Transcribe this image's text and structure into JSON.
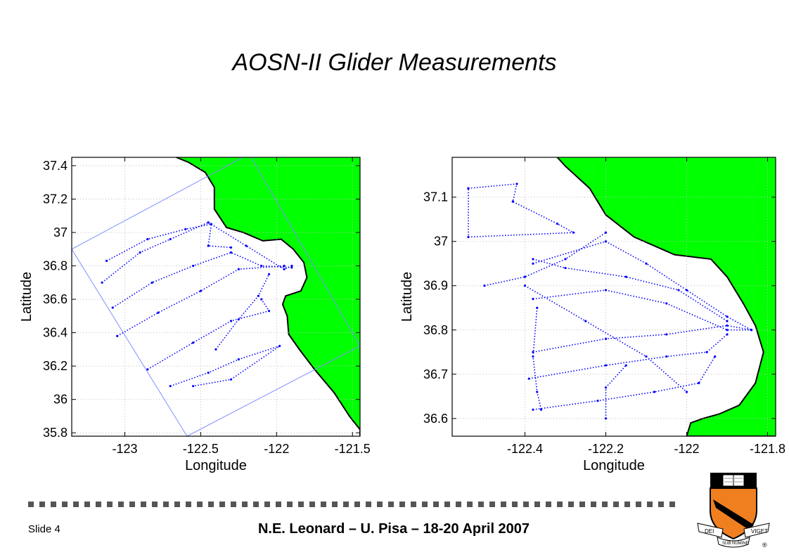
{
  "page": {
    "title": "AOSN-II Glider Measurements",
    "slide_label": "Slide 4",
    "footer": "N.E. Leonard – U. Pisa – 18-20 April 2007"
  },
  "colors": {
    "land": "#00ff00",
    "track": "#0000ff",
    "box": "#7f8fff",
    "grid": "#bfbfbf"
  },
  "seal": {
    "motto_left": "DEI",
    "motto_center": "SUB NUMINE",
    "motto_right": "VIGET",
    "mark": "®"
  },
  "chart_data": [
    {
      "type": "scatter",
      "xlabel": "Longitude",
      "ylabel": "Latitude",
      "xlim": [
        -123.35,
        -121.45
      ],
      "ylim": [
        35.78,
        37.45
      ],
      "xticks": [
        -123,
        -122.5,
        -122,
        -121.5
      ],
      "xtick_labels": [
        "-123",
        "-122.5",
        "-122",
        "-121.5"
      ],
      "yticks": [
        35.8,
        36,
        36.2,
        36.4,
        36.6,
        36.8,
        37,
        37.2,
        37.4
      ],
      "ytick_labels": [
        "35.8",
        "36",
        "36.2",
        "36.4",
        "36.6",
        "36.8",
        "37",
        "37.2",
        "37.4"
      ],
      "grid": true,
      "coast": [
        [
          -122.66,
          37.45
        ],
        [
          -122.58,
          37.42
        ],
        [
          -122.47,
          37.36
        ],
        [
          -122.41,
          37.27
        ],
        [
          -122.41,
          37.14
        ],
        [
          -122.33,
          37.03
        ],
        [
          -122.22,
          37.0
        ],
        [
          -122.09,
          36.95
        ],
        [
          -121.97,
          36.96
        ],
        [
          -121.89,
          36.9
        ],
        [
          -121.82,
          36.82
        ],
        [
          -121.8,
          36.73
        ],
        [
          -121.84,
          36.65
        ],
        [
          -121.94,
          36.62
        ],
        [
          -121.96,
          36.57
        ],
        [
          -121.93,
          36.5
        ],
        [
          -121.92,
          36.39
        ],
        [
          -121.85,
          36.3
        ],
        [
          -121.75,
          36.18
        ],
        [
          -121.62,
          36.04
        ],
        [
          -121.52,
          35.9
        ],
        [
          -121.45,
          35.82
        ],
        [
          -121.45,
          35.78
        ]
      ],
      "domain_box": [
        [
          -123.35,
          36.9
        ],
        [
          -122.18,
          37.47
        ],
        [
          -121.45,
          36.32
        ],
        [
          -122.59,
          35.78
        ]
      ],
      "tracks": [
        [
          [
            -123.15,
            36.7
          ],
          [
            -122.9,
            36.88
          ],
          [
            -122.7,
            36.96
          ],
          [
            -122.45,
            37.06
          ],
          [
            -122.2,
            36.92
          ],
          [
            -121.95,
            36.78
          ],
          [
            -121.9,
            36.8
          ]
        ],
        [
          [
            -123.12,
            36.83
          ],
          [
            -122.85,
            36.96
          ],
          [
            -122.6,
            37.02
          ],
          [
            -122.43,
            37.05
          ],
          [
            -122.45,
            36.92
          ],
          [
            -122.3,
            36.91
          ]
        ],
        [
          [
            -123.08,
            36.55
          ],
          [
            -122.82,
            36.7
          ],
          [
            -122.55,
            36.8
          ],
          [
            -122.3,
            36.88
          ],
          [
            -122.1,
            36.8
          ],
          [
            -121.9,
            36.79
          ]
        ],
        [
          [
            -123.05,
            36.38
          ],
          [
            -122.78,
            36.52
          ],
          [
            -122.5,
            36.65
          ],
          [
            -122.25,
            36.78
          ],
          [
            -121.95,
            36.8
          ]
        ],
        [
          [
            -122.85,
            36.18
          ],
          [
            -122.55,
            36.34
          ],
          [
            -122.3,
            36.47
          ],
          [
            -122.05,
            36.53
          ],
          [
            -122.1,
            36.6
          ]
        ],
        [
          [
            -122.7,
            36.08
          ],
          [
            -122.45,
            36.16
          ],
          [
            -122.25,
            36.24
          ],
          [
            -121.98,
            36.32
          ],
          [
            -122.3,
            36.12
          ],
          [
            -122.55,
            36.08
          ]
        ],
        [
          [
            -122.4,
            36.3
          ],
          [
            -122.25,
            36.48
          ],
          [
            -122.12,
            36.62
          ],
          [
            -122.05,
            36.75
          ]
        ]
      ]
    },
    {
      "type": "scatter",
      "xlabel": "Longitude",
      "ylabel": "Latitude",
      "xlim": [
        -122.58,
        -121.78
      ],
      "ylim": [
        36.56,
        37.19
      ],
      "xticks": [
        -122.4,
        -122.2,
        -122,
        -121.8
      ],
      "xtick_labels": [
        "-122.4",
        "-122.2",
        "-122",
        "-121.8"
      ],
      "yticks": [
        36.6,
        36.7,
        36.8,
        36.9,
        37,
        37.1
      ],
      "ytick_labels": [
        "36.6",
        "36.7",
        "36.8",
        "36.9",
        "37",
        "37.1"
      ],
      "grid": true,
      "coast": [
        [
          -122.32,
          37.19
        ],
        [
          -122.3,
          37.17
        ],
        [
          -122.24,
          37.12
        ],
        [
          -122.2,
          37.06
        ],
        [
          -122.13,
          37.01
        ],
        [
          -122.03,
          36.97
        ],
        [
          -121.94,
          36.96
        ],
        [
          -121.9,
          36.92
        ],
        [
          -121.86,
          36.86
        ],
        [
          -121.83,
          36.81
        ],
        [
          -121.81,
          36.75
        ],
        [
          -121.83,
          36.68
        ],
        [
          -121.87,
          36.63
        ],
        [
          -121.92,
          36.61
        ],
        [
          -121.96,
          36.6
        ],
        [
          -121.99,
          36.59
        ],
        [
          -122.0,
          36.56
        ]
      ],
      "tracks": [
        [
          [
            -122.54,
            37.12
          ],
          [
            -122.42,
            37.13
          ],
          [
            -122.43,
            37.09
          ],
          [
            -122.32,
            37.04
          ],
          [
            -122.28,
            37.02
          ],
          [
            -122.54,
            37.01
          ],
          [
            -122.54,
            37.12
          ]
        ],
        [
          [
            -122.38,
            36.95
          ],
          [
            -122.2,
            37.0
          ],
          [
            -122.1,
            36.95
          ],
          [
            -122.0,
            36.89
          ],
          [
            -121.9,
            36.83
          ],
          [
            -121.84,
            36.8
          ]
        ],
        [
          [
            -122.38,
            36.96
          ],
          [
            -122.3,
            36.94
          ],
          [
            -122.15,
            36.92
          ],
          [
            -122.02,
            36.89
          ],
          [
            -121.9,
            36.82
          ]
        ],
        [
          [
            -122.38,
            36.87
          ],
          [
            -122.2,
            36.89
          ],
          [
            -122.05,
            36.86
          ],
          [
            -121.9,
            36.8
          ],
          [
            -121.84,
            36.8
          ]
        ],
        [
          [
            -122.38,
            36.75
          ],
          [
            -122.2,
            36.78
          ],
          [
            -122.05,
            36.79
          ],
          [
            -121.9,
            36.81
          ],
          [
            -121.84,
            36.8
          ]
        ],
        [
          [
            -122.39,
            36.69
          ],
          [
            -122.2,
            36.72
          ],
          [
            -122.05,
            36.74
          ],
          [
            -121.95,
            36.75
          ],
          [
            -121.9,
            36.79
          ]
        ],
        [
          [
            -122.38,
            36.62
          ],
          [
            -122.22,
            36.64
          ],
          [
            -122.08,
            36.66
          ],
          [
            -121.97,
            36.68
          ],
          [
            -121.93,
            36.74
          ]
        ],
        [
          [
            -122.37,
            36.85
          ],
          [
            -122.38,
            36.74
          ],
          [
            -122.37,
            36.66
          ],
          [
            -122.36,
            36.62
          ]
        ],
        [
          [
            -122.2,
            36.6
          ],
          [
            -122.2,
            36.67
          ],
          [
            -122.15,
            36.72
          ]
        ],
        [
          [
            -122.5,
            36.9
          ],
          [
            -122.4,
            36.92
          ],
          [
            -122.3,
            36.96
          ],
          [
            -122.2,
            37.02
          ]
        ],
        [
          [
            -122.4,
            36.9
          ],
          [
            -122.25,
            36.82
          ],
          [
            -122.1,
            36.74
          ],
          [
            -122.0,
            36.66
          ]
        ]
      ]
    }
  ]
}
